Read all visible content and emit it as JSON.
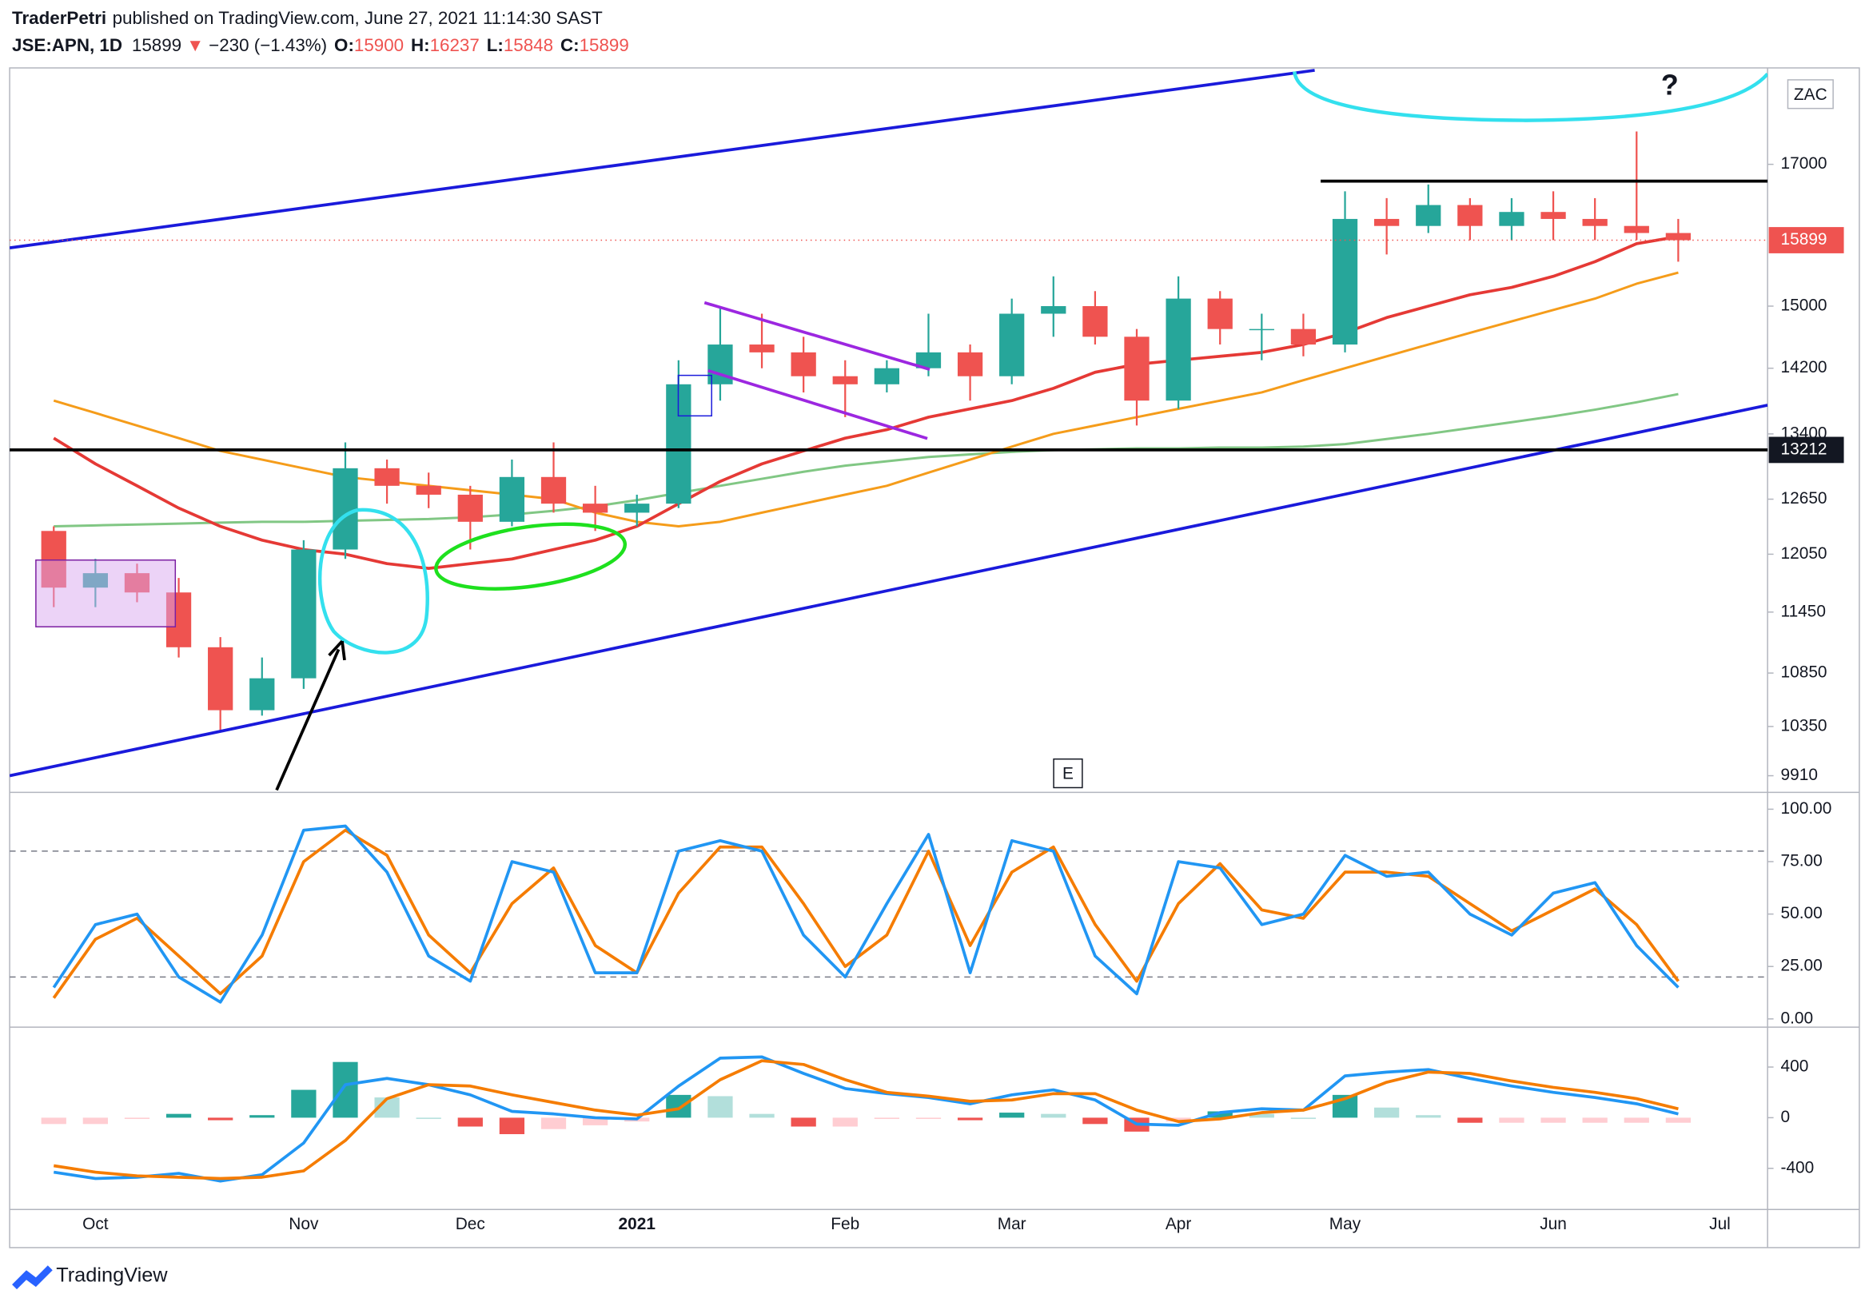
{
  "header": {
    "author": "TraderPetri",
    "published": "published on TradingView.com, June 27, 2021 11:14:30 SAST",
    "symbol": "JSE:APN, 1D",
    "last": 15899,
    "direction": "▼",
    "change": "−230 (−1.43%)",
    "open_label": "O:",
    "open": 15900,
    "high_label": "H:",
    "high": 16237,
    "low_label": "L:",
    "low": 15848,
    "close_label": "C:",
    "close": 15899
  },
  "footer": {
    "brand": "TradingView"
  },
  "chart_data": [
    {
      "type": "candlestick",
      "categories": [
        null,
        "Oct",
        null,
        null,
        null,
        null,
        "Nov",
        null,
        null,
        null,
        "Dec",
        null,
        null,
        null,
        "2021",
        null,
        null,
        null,
        null,
        "Feb",
        null,
        null,
        null,
        "Mar",
        null,
        null,
        null,
        "Apr",
        null,
        null,
        null,
        "May",
        null,
        null,
        null,
        null,
        "Jun",
        null,
        null,
        null,
        "Jul"
      ],
      "open": [
        12300,
        11700,
        11850,
        11650,
        11100,
        10500,
        10800,
        12100,
        13000,
        12800,
        12700,
        12400,
        12900,
        12600,
        12500,
        12600,
        14000,
        14500,
        14400,
        14100,
        14000,
        14200,
        14400,
        14100,
        14900,
        15000,
        14600,
        13800,
        15100,
        14700,
        14700,
        14500,
        16200,
        16100,
        16400,
        16100,
        16300,
        16200,
        16100,
        16000,
        null
      ],
      "high": [
        12350,
        12000,
        11950,
        11800,
        11200,
        11000,
        12200,
        13300,
        13100,
        12950,
        12800,
        13100,
        13300,
        12800,
        12700,
        14300,
        15000,
        14900,
        14600,
        14300,
        14300,
        14900,
        14500,
        15100,
        15400,
        15200,
        14700,
        15400,
        15200,
        14900,
        14900,
        16600,
        16500,
        16700,
        16500,
        16500,
        16600,
        16500,
        17500,
        16200,
        null
      ],
      "low": [
        11500,
        11500,
        11550,
        11000,
        10300,
        10450,
        10700,
        12000,
        12600,
        12550,
        12100,
        12350,
        12500,
        12300,
        12350,
        12550,
        13800,
        14200,
        13900,
        13600,
        13900,
        14100,
        13800,
        14000,
        14600,
        14500,
        13500,
        13700,
        14500,
        14300,
        14350,
        14400,
        15700,
        16000,
        15900,
        15900,
        15900,
        15900,
        15900,
        15600,
        null
      ],
      "close": [
        11700,
        11850,
        11650,
        11100,
        10500,
        10800,
        12100,
        13000,
        12800,
        12700,
        12400,
        12900,
        12600,
        12500,
        12600,
        14000,
        14500,
        14400,
        14100,
        14000,
        14200,
        14400,
        14100,
        14900,
        15000,
        14600,
        13800,
        15100,
        14700,
        14700,
        14500,
        16200,
        16100,
        16400,
        16100,
        16300,
        16200,
        16100,
        16000,
        15899,
        null
      ],
      "up_color": "#26a69a",
      "down_color": "#ef5350",
      "moving_averages": [
        {
          "color": "#81c784",
          "values": [
            12350,
            12360,
            12370,
            12380,
            12390,
            12400,
            12400,
            12410,
            12420,
            12430,
            12450,
            12480,
            12520,
            12570,
            12640,
            12720,
            12800,
            12880,
            12960,
            13030,
            13080,
            13130,
            13160,
            13190,
            13210,
            13220,
            13230,
            13230,
            13240,
            13240,
            13250,
            13280,
            13340,
            13400,
            13470,
            13540,
            13610,
            13690,
            13780,
            13880,
            null
          ]
        },
        {
          "color": "#f59c1a",
          "values": [
            13800,
            13650,
            13500,
            13350,
            13200,
            13100,
            13000,
            12900,
            12850,
            12800,
            12750,
            12700,
            12650,
            12500,
            12400,
            12350,
            12400,
            12500,
            12600,
            12700,
            12800,
            12950,
            13100,
            13250,
            13400,
            13500,
            13600,
            13700,
            13800,
            13900,
            14050,
            14200,
            14350,
            14500,
            14650,
            14800,
            14950,
            15100,
            15300,
            15450,
            null
          ]
        },
        {
          "color": "#e53935",
          "values": [
            13350,
            13050,
            12800,
            12550,
            12350,
            12200,
            12100,
            12050,
            11950,
            11900,
            11950,
            12000,
            12100,
            12200,
            12350,
            12600,
            12850,
            13050,
            13200,
            13350,
            13450,
            13600,
            13700,
            13800,
            13950,
            14150,
            14250,
            14300,
            14350,
            14400,
            14500,
            14650,
            14850,
            15000,
            15150,
            15250,
            15400,
            15600,
            15850,
            15950,
            null
          ]
        }
      ],
      "ylim": [
        9765,
        18510
      ],
      "log": true,
      "yticks": [
        9910,
        10350,
        10850,
        11450,
        12050,
        12650,
        13400,
        14200,
        15000,
        17000
      ],
      "last_price": 15899,
      "hlines": [
        13212
      ],
      "currency": "ZAC",
      "annotation": "?",
      "event_marker": "E"
    },
    {
      "type": "line",
      "series": [
        {
          "color": "#f57c00",
          "values": [
            10,
            38,
            48,
            30,
            12,
            30,
            75,
            90,
            78,
            40,
            22,
            55,
            72,
            35,
            22,
            60,
            82,
            82,
            55,
            25,
            40,
            80,
            35,
            70,
            82,
            45,
            18,
            55,
            74,
            52,
            48,
            70,
            70,
            68,
            55,
            42,
            52,
            62,
            45,
            18,
            null
          ]
        },
        {
          "color": "#2196f3",
          "values": [
            15,
            45,
            50,
            20,
            8,
            40,
            90,
            92,
            70,
            30,
            18,
            75,
            70,
            22,
            22,
            80,
            85,
            80,
            40,
            20,
            55,
            88,
            22,
            85,
            80,
            30,
            12,
            75,
            72,
            45,
            50,
            78,
            68,
            70,
            50,
            40,
            60,
            65,
            35,
            15,
            null
          ]
        }
      ],
      "levels": [
        80,
        20
      ],
      "ylim": [
        -2.8,
        106.3
      ],
      "yticks": [
        {
          "value": 100,
          "label": "100.00"
        },
        {
          "value": 75,
          "label": "75.00"
        },
        {
          "value": 50,
          "label": "50.00"
        },
        {
          "value": 25,
          "label": "25.00"
        },
        {
          "value": 0,
          "label": "0.00"
        }
      ]
    },
    {
      "type": "macd",
      "histogram": [
        -50,
        -50,
        -10,
        30,
        -20,
        20,
        220,
        440,
        160,
        0,
        -70,
        -130,
        -90,
        -60,
        -30,
        180,
        170,
        30,
        -70,
        -70,
        -10,
        -10,
        -20,
        40,
        30,
        -50,
        -110,
        -30,
        50,
        30,
        0,
        180,
        80,
        20,
        -40,
        -40,
        -40,
        -40,
        -40,
        -40,
        null
      ],
      "series": [
        {
          "color": "#2196f3",
          "values": [
            -430,
            -480,
            -470,
            -440,
            -500,
            -450,
            -200,
            260,
            310,
            260,
            180,
            50,
            30,
            0,
            -10,
            250,
            470,
            480,
            350,
            230,
            190,
            160,
            110,
            180,
            220,
            140,
            -50,
            -60,
            40,
            70,
            60,
            330,
            360,
            380,
            310,
            250,
            200,
            160,
            110,
            30,
            null
          ]
        },
        {
          "color": "#f57c00",
          "values": [
            -380,
            -430,
            -460,
            -470,
            -480,
            -470,
            -420,
            -180,
            150,
            260,
            250,
            180,
            120,
            60,
            20,
            70,
            300,
            450,
            420,
            300,
            200,
            170,
            130,
            140,
            190,
            190,
            60,
            -30,
            -10,
            40,
            60,
            150,
            280,
            360,
            350,
            290,
            240,
            200,
            150,
            70,
            null
          ]
        }
      ],
      "ylim": [
        -725,
        715
      ],
      "yticks": [
        400,
        0,
        -400
      ]
    }
  ]
}
